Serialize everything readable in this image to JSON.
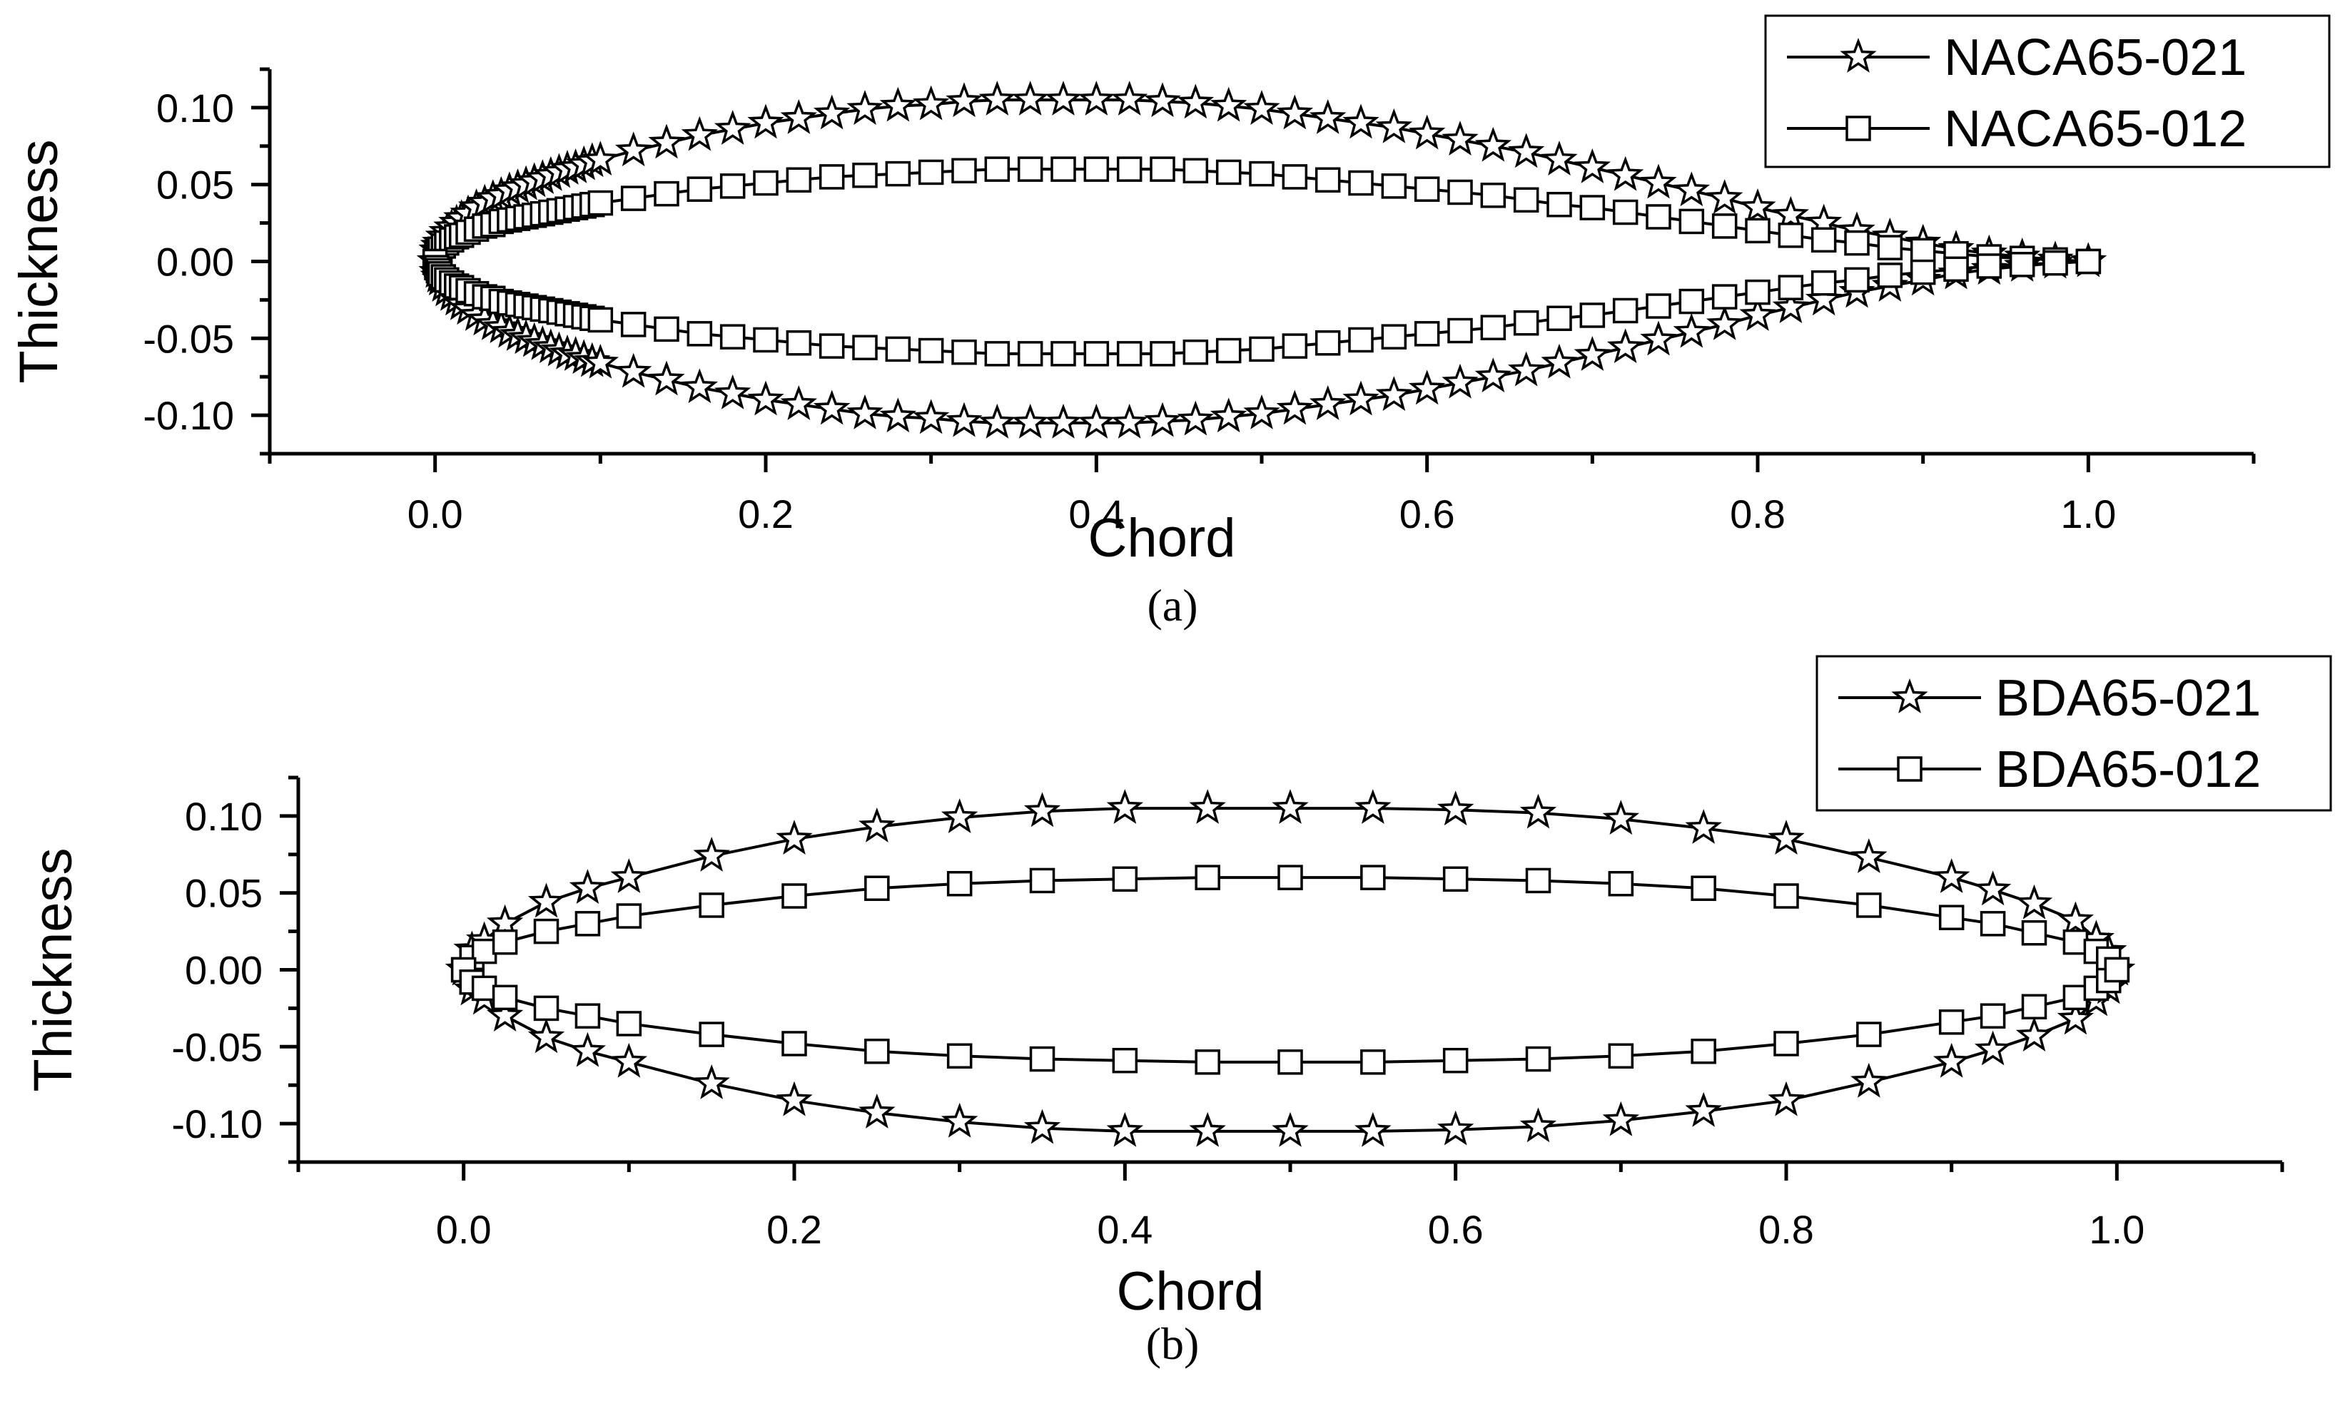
{
  "chart_data": [
    {
      "type": "scatter",
      "caption": "(a)",
      "xlabel": "Chord",
      "ylabel": "Thickness",
      "xlim": [
        -0.1,
        1.1
      ],
      "ylim": [
        -0.125,
        0.125
      ],
      "xticks": [
        "0.0",
        "0.2",
        "0.4",
        "0.6",
        "0.8",
        "1.0"
      ],
      "yticks": [
        "-0.10",
        "-0.05",
        "0.00",
        "0.05",
        "0.10"
      ],
      "legend_position": "top-right",
      "series": [
        {
          "name": "NACA65-021",
          "marker": "star",
          "x": [
            0,
            0.001,
            0.002,
            0.003,
            0.005,
            0.007,
            0.01,
            0.013,
            0.016,
            0.02,
            0.025,
            0.03,
            0.035,
            0.04,
            0.045,
            0.05,
            0.055,
            0.06,
            0.065,
            0.07,
            0.075,
            0.08,
            0.085,
            0.09,
            0.095,
            0.1,
            0.12,
            0.14,
            0.16,
            0.18,
            0.2,
            0.22,
            0.24,
            0.26,
            0.28,
            0.3,
            0.32,
            0.34,
            0.36,
            0.38,
            0.4,
            0.42,
            0.44,
            0.46,
            0.48,
            0.5,
            0.52,
            0.54,
            0.56,
            0.58,
            0.6,
            0.62,
            0.64,
            0.66,
            0.68,
            0.7,
            0.72,
            0.74,
            0.76,
            0.78,
            0.8,
            0.82,
            0.84,
            0.86,
            0.88,
            0.9,
            0.92,
            0.94,
            0.96,
            0.98,
            1.0
          ],
          "y_upper": [
            0,
            0.007,
            0.01,
            0.012,
            0.016,
            0.019,
            0.022,
            0.025,
            0.028,
            0.031,
            0.035,
            0.038,
            0.041,
            0.043,
            0.046,
            0.048,
            0.05,
            0.052,
            0.054,
            0.056,
            0.058,
            0.06,
            0.061,
            0.063,
            0.065,
            0.066,
            0.072,
            0.077,
            0.082,
            0.086,
            0.09,
            0.093,
            0.096,
            0.099,
            0.101,
            0.102,
            0.104,
            0.105,
            0.105,
            0.105,
            0.105,
            0.105,
            0.104,
            0.103,
            0.101,
            0.099,
            0.096,
            0.093,
            0.09,
            0.087,
            0.083,
            0.079,
            0.075,
            0.071,
            0.066,
            0.061,
            0.056,
            0.051,
            0.046,
            0.041,
            0.035,
            0.03,
            0.025,
            0.02,
            0.016,
            0.012,
            0.008,
            0.005,
            0.003,
            0.001,
            0
          ],
          "y_lower": [
            0,
            -0.007,
            -0.01,
            -0.012,
            -0.016,
            -0.019,
            -0.022,
            -0.025,
            -0.028,
            -0.031,
            -0.035,
            -0.038,
            -0.041,
            -0.043,
            -0.046,
            -0.048,
            -0.05,
            -0.052,
            -0.054,
            -0.056,
            -0.058,
            -0.06,
            -0.061,
            -0.063,
            -0.065,
            -0.066,
            -0.072,
            -0.077,
            -0.082,
            -0.086,
            -0.09,
            -0.093,
            -0.096,
            -0.099,
            -0.101,
            -0.102,
            -0.104,
            -0.105,
            -0.105,
            -0.105,
            -0.105,
            -0.105,
            -0.104,
            -0.103,
            -0.101,
            -0.099,
            -0.096,
            -0.093,
            -0.09,
            -0.087,
            -0.083,
            -0.079,
            -0.075,
            -0.071,
            -0.066,
            -0.061,
            -0.056,
            -0.051,
            -0.046,
            -0.041,
            -0.035,
            -0.03,
            -0.025,
            -0.02,
            -0.016,
            -0.012,
            -0.008,
            -0.005,
            -0.003,
            -0.001,
            0
          ]
        },
        {
          "name": "NACA65-012",
          "marker": "square",
          "x": [
            0,
            0.001,
            0.002,
            0.003,
            0.005,
            0.007,
            0.01,
            0.013,
            0.016,
            0.02,
            0.025,
            0.03,
            0.035,
            0.04,
            0.045,
            0.05,
            0.055,
            0.06,
            0.065,
            0.07,
            0.075,
            0.08,
            0.085,
            0.09,
            0.095,
            0.1,
            0.12,
            0.14,
            0.16,
            0.18,
            0.2,
            0.22,
            0.24,
            0.26,
            0.28,
            0.3,
            0.32,
            0.34,
            0.36,
            0.38,
            0.4,
            0.42,
            0.44,
            0.46,
            0.48,
            0.5,
            0.52,
            0.54,
            0.56,
            0.58,
            0.6,
            0.62,
            0.64,
            0.66,
            0.68,
            0.7,
            0.72,
            0.74,
            0.76,
            0.78,
            0.8,
            0.82,
            0.84,
            0.86,
            0.88,
            0.9,
            0.92,
            0.94,
            0.96,
            0.98,
            1.0
          ],
          "y_upper": [
            0,
            0.004,
            0.006,
            0.008,
            0.01,
            0.012,
            0.014,
            0.016,
            0.017,
            0.019,
            0.021,
            0.023,
            0.024,
            0.026,
            0.027,
            0.028,
            0.029,
            0.03,
            0.031,
            0.032,
            0.033,
            0.034,
            0.035,
            0.036,
            0.037,
            0.038,
            0.041,
            0.044,
            0.047,
            0.049,
            0.051,
            0.053,
            0.055,
            0.056,
            0.057,
            0.058,
            0.059,
            0.06,
            0.06,
            0.06,
            0.06,
            0.06,
            0.06,
            0.059,
            0.058,
            0.057,
            0.055,
            0.053,
            0.051,
            0.049,
            0.047,
            0.045,
            0.043,
            0.04,
            0.037,
            0.035,
            0.032,
            0.029,
            0.026,
            0.023,
            0.02,
            0.017,
            0.014,
            0.012,
            0.009,
            0.007,
            0.005,
            0.003,
            0.002,
            0.001,
            0
          ],
          "y_lower": [
            0,
            -0.004,
            -0.006,
            -0.008,
            -0.01,
            -0.012,
            -0.014,
            -0.016,
            -0.017,
            -0.019,
            -0.021,
            -0.023,
            -0.024,
            -0.026,
            -0.027,
            -0.028,
            -0.029,
            -0.03,
            -0.031,
            -0.032,
            -0.033,
            -0.034,
            -0.035,
            -0.036,
            -0.037,
            -0.038,
            -0.041,
            -0.044,
            -0.047,
            -0.049,
            -0.051,
            -0.053,
            -0.055,
            -0.056,
            -0.057,
            -0.058,
            -0.059,
            -0.06,
            -0.06,
            -0.06,
            -0.06,
            -0.06,
            -0.06,
            -0.059,
            -0.058,
            -0.057,
            -0.055,
            -0.053,
            -0.051,
            -0.049,
            -0.047,
            -0.045,
            -0.043,
            -0.04,
            -0.037,
            -0.035,
            -0.032,
            -0.029,
            -0.026,
            -0.023,
            -0.02,
            -0.017,
            -0.014,
            -0.012,
            -0.009,
            -0.007,
            -0.005,
            -0.003,
            -0.002,
            -0.001,
            0
          ]
        }
      ]
    },
    {
      "type": "scatter",
      "caption": "(b)",
      "xlabel": "Chord",
      "ylabel": "Thickness",
      "xlim": [
        -0.1,
        1.1
      ],
      "ylim": [
        -0.125,
        0.125
      ],
      "xticks": [
        "0.0",
        "0.2",
        "0.4",
        "0.6",
        "0.8",
        "1.0"
      ],
      "yticks": [
        "-0.10",
        "-0.05",
        "0.00",
        "0.05",
        "0.10"
      ],
      "legend_position": "top-right",
      "series": [
        {
          "name": "BDA65-021",
          "marker": "star",
          "x": [
            0,
            0.005,
            0.0125,
            0.025,
            0.05,
            0.075,
            0.1,
            0.15,
            0.2,
            0.25,
            0.3,
            0.35,
            0.4,
            0.45,
            0.5,
            0.55,
            0.6,
            0.65,
            0.7,
            0.75,
            0.8,
            0.85,
            0.9,
            0.925,
            0.95,
            0.975,
            0.9875,
            0.995,
            1.0
          ],
          "y_upper": [
            0,
            0.013,
            0.019,
            0.03,
            0.044,
            0.053,
            0.06,
            0.074,
            0.085,
            0.093,
            0.099,
            0.103,
            0.105,
            0.105,
            0.105,
            0.105,
            0.104,
            0.102,
            0.098,
            0.092,
            0.085,
            0.073,
            0.06,
            0.052,
            0.043,
            0.032,
            0.02,
            0.012,
            0
          ],
          "y_lower": [
            0,
            -0.013,
            -0.019,
            -0.03,
            -0.044,
            -0.053,
            -0.06,
            -0.074,
            -0.085,
            -0.093,
            -0.099,
            -0.103,
            -0.105,
            -0.105,
            -0.105,
            -0.105,
            -0.104,
            -0.102,
            -0.098,
            -0.092,
            -0.085,
            -0.073,
            -0.06,
            -0.052,
            -0.043,
            -0.032,
            -0.02,
            -0.012,
            0
          ]
        },
        {
          "name": "BDA65-012",
          "marker": "square",
          "x": [
            0,
            0.005,
            0.0125,
            0.025,
            0.05,
            0.075,
            0.1,
            0.15,
            0.2,
            0.25,
            0.3,
            0.35,
            0.4,
            0.45,
            0.5,
            0.55,
            0.6,
            0.65,
            0.7,
            0.75,
            0.8,
            0.85,
            0.9,
            0.925,
            0.95,
            0.975,
            0.9875,
            0.995,
            1.0
          ],
          "y_upper": [
            0,
            0.008,
            0.012,
            0.018,
            0.025,
            0.03,
            0.035,
            0.042,
            0.048,
            0.053,
            0.056,
            0.058,
            0.059,
            0.06,
            0.06,
            0.06,
            0.059,
            0.058,
            0.056,
            0.053,
            0.048,
            0.042,
            0.034,
            0.03,
            0.024,
            0.018,
            0.012,
            0.007,
            0
          ],
          "y_lower": [
            0,
            -0.008,
            -0.012,
            -0.018,
            -0.025,
            -0.03,
            -0.035,
            -0.042,
            -0.048,
            -0.053,
            -0.056,
            -0.058,
            -0.059,
            -0.06,
            -0.06,
            -0.06,
            -0.059,
            -0.058,
            -0.056,
            -0.053,
            -0.048,
            -0.042,
            -0.034,
            -0.03,
            -0.024,
            -0.018,
            -0.012,
            -0.007,
            0
          ]
        }
      ]
    }
  ]
}
